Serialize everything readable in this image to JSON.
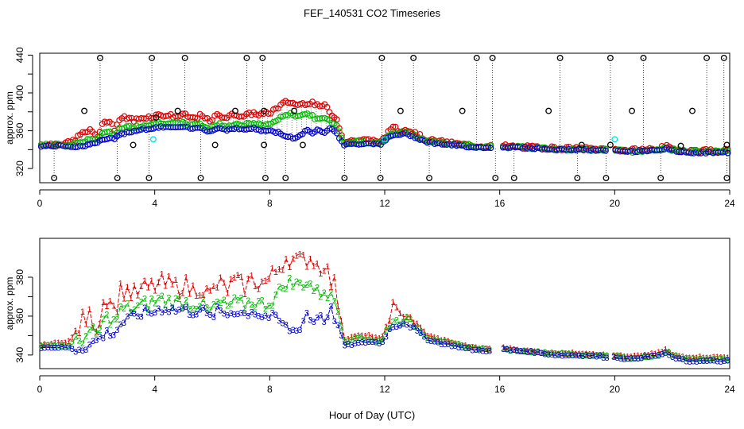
{
  "title": "FEF_140531  CO2 Timeseries",
  "xlabel": "Hour of Day (UTC)",
  "colors": {
    "series1": "#e00000",
    "series2": "#00c000",
    "series3": "#0000d0",
    "flagged": "#000000",
    "cyan": "#00e0e0"
  },
  "chart_data": [
    {
      "type": "scatter",
      "panel": "top",
      "ylabel": "approx. ppm",
      "xlim": [
        0,
        24
      ],
      "ylim": [
        305,
        442
      ],
      "xticks": [
        0,
        4,
        8,
        12,
        16,
        20,
        24
      ],
      "yticks": [
        320,
        360,
        400,
        440
      ],
      "yminor": [
        340,
        380,
        420
      ],
      "outliers_high": [
        2.1,
        3.9,
        5.05,
        7.2,
        7.75,
        11.9,
        13.0,
        15.2,
        15.75,
        18.1,
        19.85,
        21.0,
        23.2,
        23.8
      ],
      "outliers_low": [
        0.5,
        2.7,
        3.8,
        5.6,
        7.85,
        8.55,
        10.6,
        11.85,
        13.55,
        15.85,
        16.5,
        18.7,
        19.7,
        21.6,
        23.9
      ],
      "flag_points": [
        [
          1.55,
          381
        ],
        [
          4.05,
          374
        ],
        [
          4.8,
          381
        ],
        [
          6.8,
          381
        ],
        [
          7.8,
          381
        ],
        [
          8.85,
          381
        ],
        [
          12.55,
          381
        ],
        [
          14.7,
          381
        ],
        [
          17.7,
          381
        ],
        [
          20.6,
          381
        ],
        [
          22.7,
          381
        ],
        [
          3.25,
          345
        ],
        [
          6.1,
          345
        ],
        [
          7.8,
          345
        ],
        [
          9.15,
          345
        ],
        [
          18.85,
          345
        ],
        [
          22.3,
          344
        ],
        [
          23.9,
          345
        ],
        [
          19.85,
          345
        ]
      ],
      "cyan_points": [
        [
          3.95,
          351
        ],
        [
          12.0,
          351
        ],
        [
          20.0,
          351
        ]
      ]
    },
    {
      "type": "line",
      "panel": "bottom",
      "ylabel": "approx. ppm",
      "xlim": [
        0,
        24
      ],
      "ylim": [
        333,
        400
      ],
      "xticks": [
        0,
        4,
        8,
        12,
        16,
        20,
        24
      ],
      "yticks": [
        340,
        360,
        380
      ],
      "yminor": [
        350,
        370
      ],
      "markers": [
        "1",
        "2",
        "3"
      ],
      "gaps": [
        [
          15.75,
          16.05
        ],
        [
          19.75,
          19.95
        ]
      ],
      "series": [
        {
          "name": "1",
          "x": [
            0.0,
            0.5,
            1.0,
            1.2,
            1.5,
            1.8,
            2.0,
            2.2,
            2.4,
            2.6,
            2.8,
            3.0,
            3.3,
            3.6,
            3.9,
            4.2,
            4.5,
            4.8,
            5.0,
            5.3,
            5.6,
            5.9,
            6.2,
            6.5,
            6.8,
            7.1,
            7.4,
            7.7,
            8.0,
            8.3,
            8.6,
            8.9,
            9.1,
            9.3,
            9.5,
            9.7,
            9.9,
            10.1,
            10.3,
            10.6,
            11.0,
            11.5,
            11.9,
            12.1,
            12.3,
            12.5,
            12.7,
            13.0,
            13.5,
            14.0,
            15.0,
            15.7,
            16.1,
            17.0,
            18.0,
            19.0,
            19.7,
            20.0,
            20.5,
            21.0,
            21.5,
            21.8,
            22.0,
            22.5,
            23.0,
            23.5,
            23.9
          ],
          "values": [
            345,
            346,
            347,
            350,
            358,
            360,
            354,
            367,
            372,
            362,
            373,
            374,
            371,
            374,
            375,
            377,
            376,
            375,
            377,
            373,
            376,
            370,
            377,
            374,
            378,
            375,
            379,
            377,
            379,
            385,
            391,
            388,
            388,
            390,
            390,
            385,
            388,
            378,
            375,
            348,
            350,
            350,
            348,
            357,
            366,
            360,
            362,
            358,
            350,
            348,
            344,
            343,
            344,
            342,
            341,
            341,
            340,
            340,
            339,
            340,
            341,
            343,
            340,
            339,
            339,
            339,
            339
          ]
        },
        {
          "name": "2",
          "x": [
            0.0,
            0.5,
            1.0,
            1.2,
            1.5,
            1.8,
            2.0,
            2.2,
            2.4,
            2.6,
            2.8,
            3.0,
            3.3,
            3.6,
            3.9,
            4.2,
            4.5,
            4.8,
            5.0,
            5.3,
            5.6,
            5.9,
            6.2,
            6.5,
            6.8,
            7.1,
            7.4,
            7.7,
            8.0,
            8.3,
            8.6,
            8.9,
            9.1,
            9.3,
            9.5,
            9.7,
            9.9,
            10.1,
            10.3,
            10.6,
            11.0,
            11.5,
            11.9,
            12.1,
            12.3,
            12.5,
            12.7,
            13.0,
            13.5,
            14.0,
            15.0,
            15.7,
            16.1,
            17.0,
            18.0,
            19.0,
            19.7,
            20.0,
            20.5,
            21.0,
            21.5,
            21.8,
            22.0,
            22.5,
            23.0,
            23.5,
            23.9
          ],
          "values": [
            345,
            345,
            345,
            346,
            349,
            352,
            350,
            357,
            360,
            356,
            363,
            364,
            364,
            366,
            367,
            369,
            368,
            367,
            368,
            366,
            367,
            362,
            367,
            365,
            367,
            366,
            368,
            366,
            367,
            372,
            378,
            376,
            377,
            378,
            375,
            371,
            374,
            370,
            368,
            347,
            349,
            348,
            347,
            354,
            358,
            357,
            359,
            356,
            349,
            347,
            344,
            343,
            343,
            342,
            341,
            340,
            340,
            340,
            338,
            339,
            340,
            342,
            340,
            338,
            338,
            338,
            338
          ]
        },
        {
          "name": "3",
          "x": [
            0.0,
            0.5,
            1.0,
            1.2,
            1.5,
            1.8,
            2.0,
            2.2,
            2.4,
            2.6,
            2.8,
            3.0,
            3.3,
            3.6,
            3.9,
            4.2,
            4.5,
            4.8,
            5.0,
            5.3,
            5.6,
            5.9,
            6.2,
            6.5,
            6.8,
            7.1,
            7.4,
            7.7,
            8.0,
            8.3,
            8.6,
            8.9,
            9.1,
            9.3,
            9.5,
            9.7,
            9.9,
            10.1,
            10.3,
            10.6,
            11.0,
            11.5,
            11.9,
            12.1,
            12.3,
            12.5,
            12.7,
            13.0,
            13.5,
            14.0,
            15.0,
            15.7,
            16.1,
            17.0,
            18.0,
            19.0,
            19.7,
            20.0,
            20.5,
            21.0,
            21.5,
            21.8,
            22.0,
            22.5,
            23.0,
            23.5,
            23.9
          ],
          "values": [
            344,
            344,
            344,
            343,
            344,
            346,
            348,
            350,
            352,
            351,
            356,
            358,
            360,
            362,
            362,
            364,
            364,
            363,
            364,
            362,
            364,
            359,
            363,
            361,
            363,
            361,
            363,
            360,
            360,
            358,
            354,
            352,
            356,
            362,
            356,
            362,
            358,
            364,
            358,
            345,
            346,
            347,
            346,
            352,
            355,
            356,
            357,
            354,
            348,
            346,
            343,
            342,
            343,
            342,
            340,
            340,
            339,
            339,
            338,
            339,
            340,
            341,
            339,
            337,
            337,
            337,
            337
          ]
        }
      ]
    }
  ]
}
